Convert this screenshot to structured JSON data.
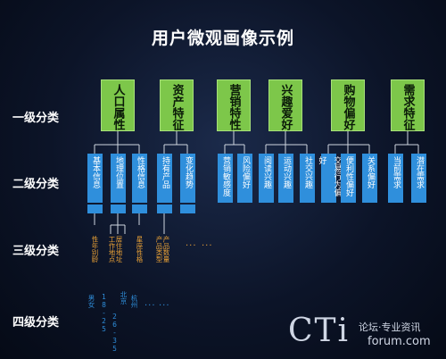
{
  "title": "用户微观画像示例",
  "levels": [
    "一级分类",
    "二级分类",
    "三级分类",
    "四级分类"
  ],
  "level1": [
    {
      "line1": "人口",
      "line2": "属性"
    },
    {
      "line1": "资产",
      "line2": "特征"
    },
    {
      "line1": "营销",
      "line2": "特性"
    },
    {
      "line1": "兴趣",
      "line2": "爱好"
    },
    {
      "line1": "购物",
      "line2": "偏好"
    },
    {
      "line1": "需求",
      "line2": "特征"
    }
  ],
  "level2": [
    "基本信息",
    "地理位置",
    "性格信息",
    "持有产品",
    "变化趋势",
    "营销敏感度",
    "风险偏好",
    "阅读兴趣",
    "运动兴趣",
    "社交兴趣",
    "交易行为偏好",
    "便利性偏好",
    "关系偏好",
    "当前需求",
    "潜在需求"
  ],
  "level3": [
    "性年别龄",
    "工作地点",
    "居住地址",
    "星座性格",
    "产品类型",
    "产品数量",
    "..."
  ],
  "level4": [
    "男女",
    "18-25",
    "26-35",
    "北京",
    "杭州",
    "..."
  ],
  "watermark": {
    "big": "CTi",
    "cn": "论坛·专业资讯",
    "en": "forum.com"
  },
  "colors": {
    "level1": "#7dc74a",
    "level2": "#2f8fdc",
    "level3": "#e8a036",
    "level4": "#2f8fdc"
  }
}
